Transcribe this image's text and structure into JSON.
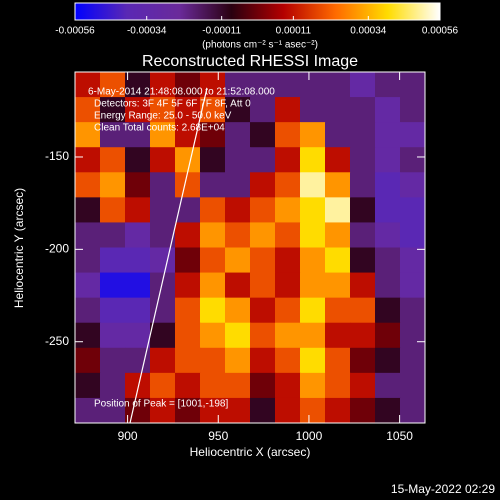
{
  "chart_data": {
    "type": "heatmap",
    "title": "Reconstructed RHESSI Image",
    "xlabel": "Heliocentric X (arcsec)",
    "ylabel": "Heliocentric Y (arcsec)",
    "colorbar_label": "(photons cm⁻² s⁻¹ asec⁻²)",
    "clim": [
      -0.00056,
      0.00056
    ],
    "cticks": [
      -0.00056,
      -0.00034,
      -0.00011,
      0.00011,
      0.00034,
      0.00056
    ],
    "colormap": [
      "#0000ff",
      "#5a28b4",
      "#6a2a9a",
      "#2a0010",
      "#b40000",
      "#ff6a00",
      "#ffdc00",
      "#ffffff"
    ],
    "xlim": [
      871,
      1064
    ],
    "ylim": [
      -294,
      -104
    ],
    "xticks": [
      900,
      950,
      1000,
      1050
    ],
    "yticks": [
      -150,
      -200,
      -250
    ],
    "annotations": [
      "6-May-2014 21:48:08.000 to 21:52:08.000",
      "Detectors: 3F 4F 5F 6F 7F 8F, Att 0",
      "Energy Range: 25.0 - 50.0 keV",
      "Clean    Total counts: 2.68E+04",
      "Position of Peak = [1001,-198]"
    ],
    "timestamp": "15-May-2022 02:29",
    "z": [
      [
        0.0001,
        0.0002,
        -0.0001,
        0.0001,
        0.0,
        0.0001,
        -0.0002,
        -0.0002,
        -0.0002,
        -0.0002,
        -0.0002,
        -0.0003,
        -0.0002,
        -0.0002
      ],
      [
        0.0002,
        -0.0001,
        0.0001,
        0.0002,
        0.0001,
        0.0002,
        -0.0001,
        -0.0002,
        0.0001,
        -0.0002,
        -0.0002,
        -0.0002,
        -0.0003,
        -0.0002
      ],
      [
        0.0003,
        -0.0002,
        -0.0002,
        0.0003,
        0.0001,
        0.0,
        -0.0002,
        -0.0001,
        0.0002,
        0.0003,
        -0.0002,
        -0.0002,
        -0.0003,
        -0.0003
      ],
      [
        0.0001,
        0.0002,
        -0.0001,
        0.0001,
        0.0003,
        -0.0001,
        -0.0002,
        -0.0002,
        0.0001,
        0.0004,
        0.0001,
        -0.0002,
        -0.0003,
        -0.0002
      ],
      [
        0.0002,
        0.0003,
        0.0,
        -0.0002,
        0.0002,
        -0.0002,
        -0.0002,
        0.0001,
        0.0002,
        0.0005,
        0.0003,
        -0.0002,
        -0.0004,
        -0.0003
      ],
      [
        -0.0001,
        0.0002,
        0.0001,
        -0.0002,
        -0.0002,
        0.0002,
        0.0001,
        0.0002,
        0.0003,
        0.0004,
        0.0005,
        -0.0001,
        -0.0004,
        -0.0004
      ],
      [
        -0.0002,
        -0.0002,
        -0.0003,
        -0.0002,
        0.0001,
        0.0003,
        0.0002,
        0.0003,
        0.0002,
        0.0004,
        0.0003,
        -0.0002,
        -0.0003,
        -0.0004
      ],
      [
        -0.0002,
        -0.0004,
        -0.0004,
        -0.0003,
        0.0,
        0.0002,
        0.0003,
        0.0002,
        0.0001,
        0.0003,
        0.0004,
        -0.0001,
        -0.0002,
        -0.0003
      ],
      [
        -0.0003,
        -0.0005,
        -0.0005,
        -0.0002,
        0.0001,
        0.0003,
        0.0001,
        0.0002,
        0.0001,
        0.0003,
        0.0003,
        0.0001,
        -0.0002,
        -0.0003
      ],
      [
        -0.0002,
        -0.0004,
        -0.0004,
        -0.0002,
        0.0002,
        0.0004,
        0.0003,
        0.0001,
        0.0002,
        0.0004,
        0.0002,
        0.0002,
        -0.0001,
        -0.0002
      ],
      [
        -0.0001,
        -0.0003,
        -0.0003,
        -0.0001,
        0.0002,
        0.0003,
        0.0004,
        0.0002,
        0.0003,
        0.0003,
        0.0001,
        0.0001,
        0.0,
        -0.0002
      ],
      [
        0.0,
        -0.0002,
        -0.0002,
        0.0001,
        0.0002,
        0.0002,
        0.0003,
        0.0001,
        0.0002,
        0.0004,
        0.0002,
        0.0,
        -0.0001,
        -0.0002
      ],
      [
        -0.0001,
        -0.0002,
        0.0001,
        0.0002,
        0.0001,
        0.0002,
        0.0002,
        0.0,
        0.0001,
        0.0003,
        0.0002,
        0.0001,
        -0.0002,
        -0.0002
      ],
      [
        -0.0002,
        -0.0002,
        0.0,
        0.0001,
        0.0,
        0.0001,
        0.0001,
        -0.0001,
        0.0001,
        0.0002,
        0.0001,
        0.0,
        -0.0001,
        -0.0002
      ]
    ]
  }
}
